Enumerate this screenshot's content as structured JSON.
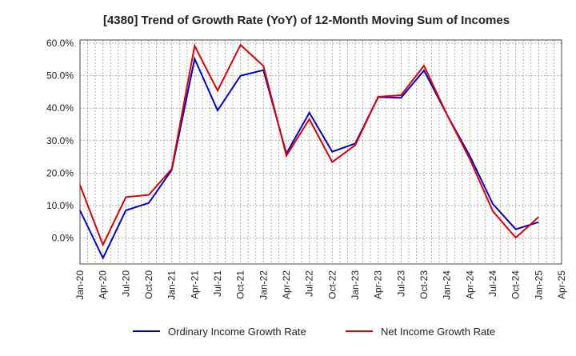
{
  "chart_data": {
    "type": "line",
    "title": "[4380]  Trend of Growth Rate (YoY) of 12-Month Moving Sum of Incomes",
    "xlabel": "",
    "ylabel": "",
    "ylim": [
      -8,
      61
    ],
    "yticks": [
      0,
      10,
      20,
      30,
      40,
      50,
      60
    ],
    "ytick_labels": [
      "0.0%",
      "10.0%",
      "20.0%",
      "30.0%",
      "40.0%",
      "50.0%",
      "60.0%"
    ],
    "x_tick_labels": [
      "Jan-20",
      "Apr-20",
      "Jul-20",
      "Oct-20",
      "Jan-21",
      "Apr-21",
      "Jul-21",
      "Oct-21",
      "Jan-22",
      "Apr-22",
      "Jul-22",
      "Oct-22",
      "Jan-23",
      "Apr-23",
      "Jul-23",
      "Oct-23",
      "Jan-24",
      "Apr-24",
      "Jul-24",
      "Oct-24",
      "Jan-25",
      "Apr-25"
    ],
    "grid": true,
    "legend_position": "bottom",
    "series": [
      {
        "name": "Ordinary Income Growth Rate",
        "color": "#0000cc",
        "values": [
          8.5,
          -6.2,
          8.5,
          10.8,
          21.0,
          55.2,
          39.3,
          50.0,
          51.7,
          26.0,
          38.6,
          26.6,
          29.1,
          43.4,
          43.2,
          51.6,
          38.0,
          25.3,
          10.5,
          2.7,
          4.9
        ]
      },
      {
        "name": "Net Income Growth Rate",
        "color": "#dd0000",
        "values": [
          16.3,
          -2.1,
          12.6,
          13.3,
          21.3,
          59.2,
          45.4,
          59.5,
          53.0,
          25.4,
          36.6,
          23.4,
          28.6,
          43.5,
          44.0,
          53.1,
          38.0,
          24.3,
          8.3,
          0.1,
          6.5
        ]
      }
    ]
  }
}
